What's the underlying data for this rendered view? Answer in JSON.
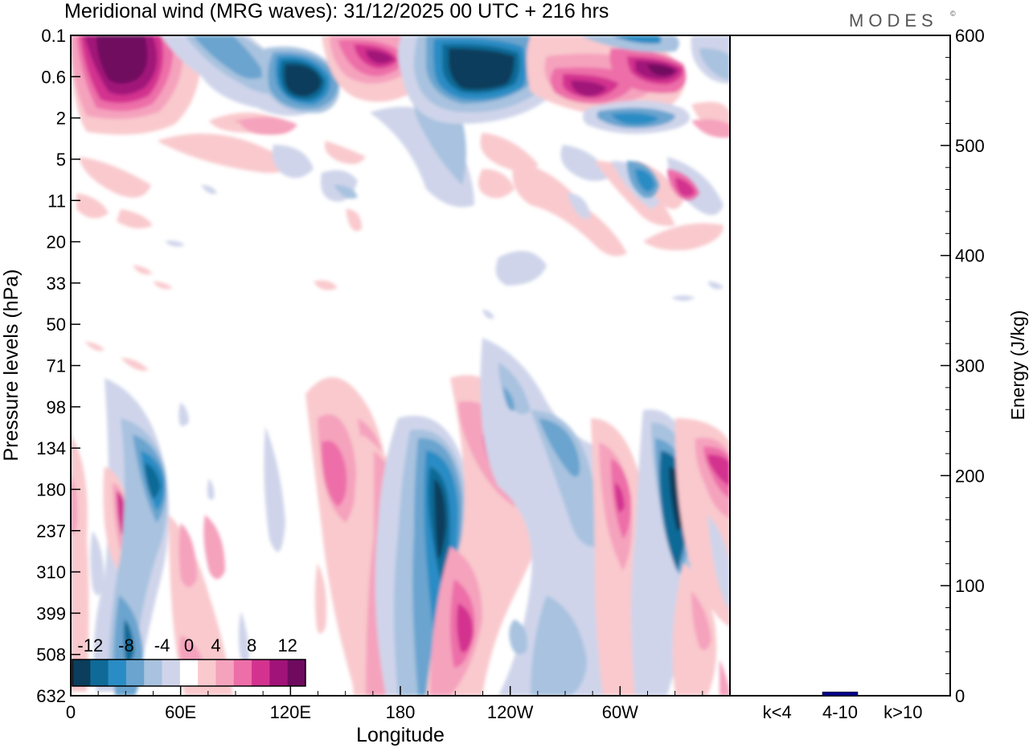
{
  "chart_data": [
    {
      "type": "heatmap",
      "title": "Meridional wind (MRG waves):  31/12/2025  00 UTC  + 216 hrs",
      "xlabel": "Longitude",
      "ylabel": "Pressure levels (hPa)",
      "x_ticks": [
        "0",
        "60E",
        "120E",
        "180",
        "120W",
        "60W"
      ],
      "x_tick_degrees": [
        0,
        60,
        120,
        180,
        240,
        300
      ],
      "x_range": [
        0,
        360
      ],
      "y_ticks": [
        "0.1",
        "0.6",
        "2",
        "5",
        "11",
        "20",
        "33",
        "50",
        "71",
        "98",
        "134",
        "180",
        "237",
        "310",
        "399",
        "508",
        "632"
      ],
      "colorbar": {
        "labels": [
          "-12",
          "-8",
          "-4",
          "0",
          "4",
          "8",
          "12"
        ],
        "label_values": [
          -12,
          -8,
          -4,
          0,
          4,
          8,
          12
        ],
        "bins": [
          -14,
          -12,
          -10,
          -8,
          -6,
          -4,
          -2,
          2,
          4,
          6,
          8,
          10,
          12,
          14
        ],
        "colors": [
          "#0b3d5c",
          "#0f6a97",
          "#2a8cc4",
          "#6aa4cf",
          "#a8c2df",
          "#cfd4ea",
          "#ffffff",
          "#f9c9cd",
          "#f5a2bd",
          "#ed6ea8",
          "#d3338f",
          "#a11379",
          "#6f0a5f"
        ]
      },
      "features": [
        {
          "lon": 35,
          "level": 1.0,
          "value": 14
        },
        {
          "lon": 70,
          "level": 0.4,
          "value": 5
        },
        {
          "lon": 80,
          "level": 0.2,
          "value": -6
        },
        {
          "lon": 125,
          "level": 0.6,
          "value": -13
        },
        {
          "lon": 160,
          "level": 0.3,
          "value": 10
        },
        {
          "lon": 225,
          "level": 0.7,
          "value": -14
        },
        {
          "lon": 280,
          "level": 0.8,
          "value": 11
        },
        {
          "lon": 310,
          "level": 0.5,
          "value": 11
        },
        {
          "lon": 315,
          "level": 0.1,
          "value": -7
        },
        {
          "lon": 35,
          "level": 180,
          "value": -9
        },
        {
          "lon": 28,
          "level": 200,
          "value": 9
        },
        {
          "lon": 150,
          "level": 160,
          "value": 9
        },
        {
          "lon": 200,
          "level": 230,
          "value": -14
        },
        {
          "lon": 218,
          "level": 430,
          "value": 11
        },
        {
          "lon": 237,
          "level": 150,
          "value": 11
        },
        {
          "lon": 265,
          "level": 140,
          "value": -8
        },
        {
          "lon": 300,
          "level": 200,
          "value": 9
        },
        {
          "lon": 330,
          "level": 200,
          "value": -14
        },
        {
          "lon": 350,
          "level": 170,
          "value": 10
        }
      ]
    },
    {
      "type": "bar",
      "ylabel": "Energy (J/kg)",
      "ylim": [
        0,
        600
      ],
      "y_ticks": [
        "0",
        "100",
        "200",
        "300",
        "400",
        "500",
        "600"
      ],
      "categories": [
        "k<4",
        "4-10",
        "k>10"
      ],
      "values": [
        0.5,
        3.5,
        0.3
      ],
      "bar_color": "#00008b"
    }
  ],
  "logo": {
    "text": "MODES",
    "mark": "©"
  }
}
